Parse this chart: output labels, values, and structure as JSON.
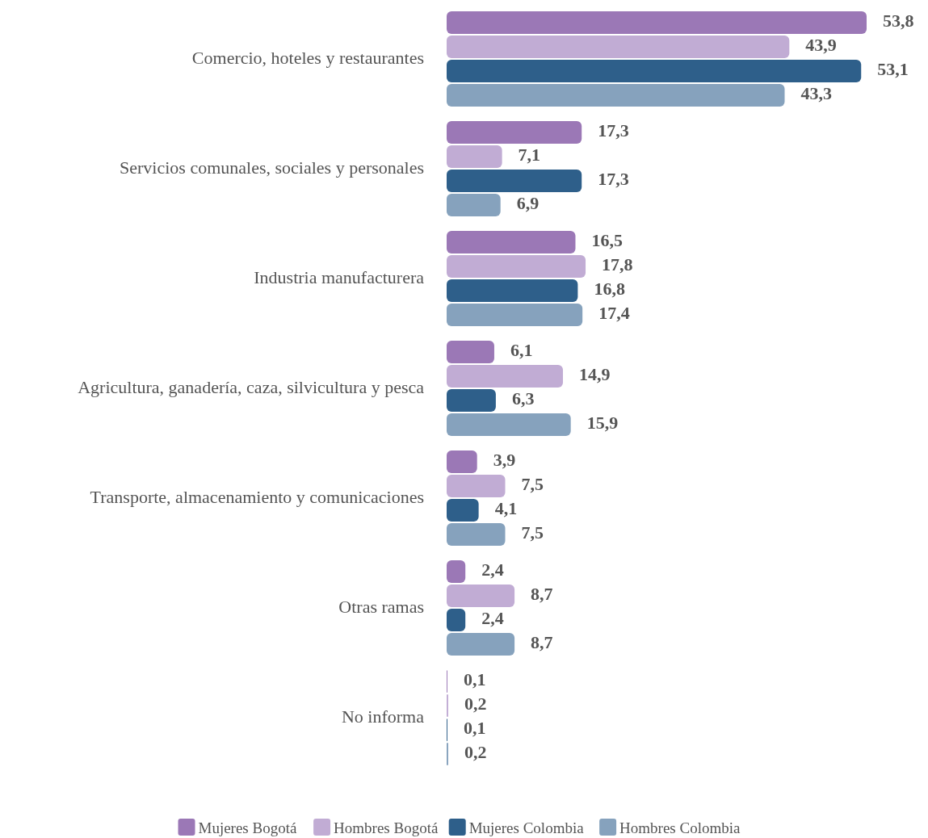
{
  "chart_data": {
    "type": "bar",
    "orientation": "horizontal",
    "legend": "bottom",
    "categories": [
      "Comercio, hoteles y restaurantes",
      "Servicios comunales, sociales y personales",
      "Industria manufacturera",
      "Agricultura, ganadería, caza, silvicultura y pesca",
      "Transporte, almacenamiento y comunicaciones",
      "Otras ramas",
      "No informa"
    ],
    "series": [
      {
        "name": "Mujeres Bogotá",
        "color": "#9b78b6",
        "values": [
          53.8,
          17.3,
          16.5,
          6.1,
          3.9,
          2.4,
          0.1
        ],
        "value_labels": [
          "53,8",
          "17,3",
          "16,5",
          "6,1",
          "3,9",
          "2,4",
          "0,1"
        ]
      },
      {
        "name": "Hombres Bogotá",
        "color": "#c1acd4",
        "values": [
          43.9,
          7.1,
          17.8,
          14.9,
          7.5,
          8.7,
          0.2
        ],
        "value_labels": [
          "43,9",
          "7,1",
          "17,8",
          "14,9",
          "7,5",
          "8,7",
          "0,2"
        ]
      },
      {
        "name": "Mujeres Colombia",
        "color": "#2e5f8a",
        "values": [
          53.1,
          17.3,
          16.8,
          6.3,
          4.1,
          2.4,
          0.1
        ],
        "value_labels": [
          "53,1",
          "17,3",
          "16,8",
          "6,3",
          "4,1",
          "2,4",
          "0,1"
        ]
      },
      {
        "name": "Hombres Colombia",
        "color": "#86a2bd",
        "values": [
          43.3,
          6.9,
          17.4,
          15.9,
          7.5,
          8.7,
          0.2
        ],
        "value_labels": [
          "43,3",
          "6,9",
          "17,4",
          "15,9",
          "7,5",
          "8,7",
          "0,2"
        ]
      }
    ]
  }
}
